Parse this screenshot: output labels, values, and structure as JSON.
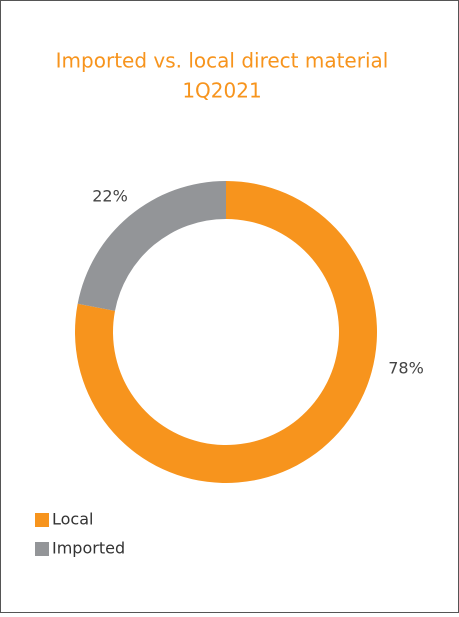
{
  "chart_data": {
    "type": "donut",
    "title": "Imported vs. local direct material",
    "subtitle": "1Q2021",
    "categories": [
      "Local",
      "Imported"
    ],
    "values": [
      78,
      22
    ],
    "value_labels": [
      "78%",
      "22%"
    ],
    "colors": [
      "#f7941d",
      "#939598"
    ],
    "legend": "bottom-left"
  }
}
